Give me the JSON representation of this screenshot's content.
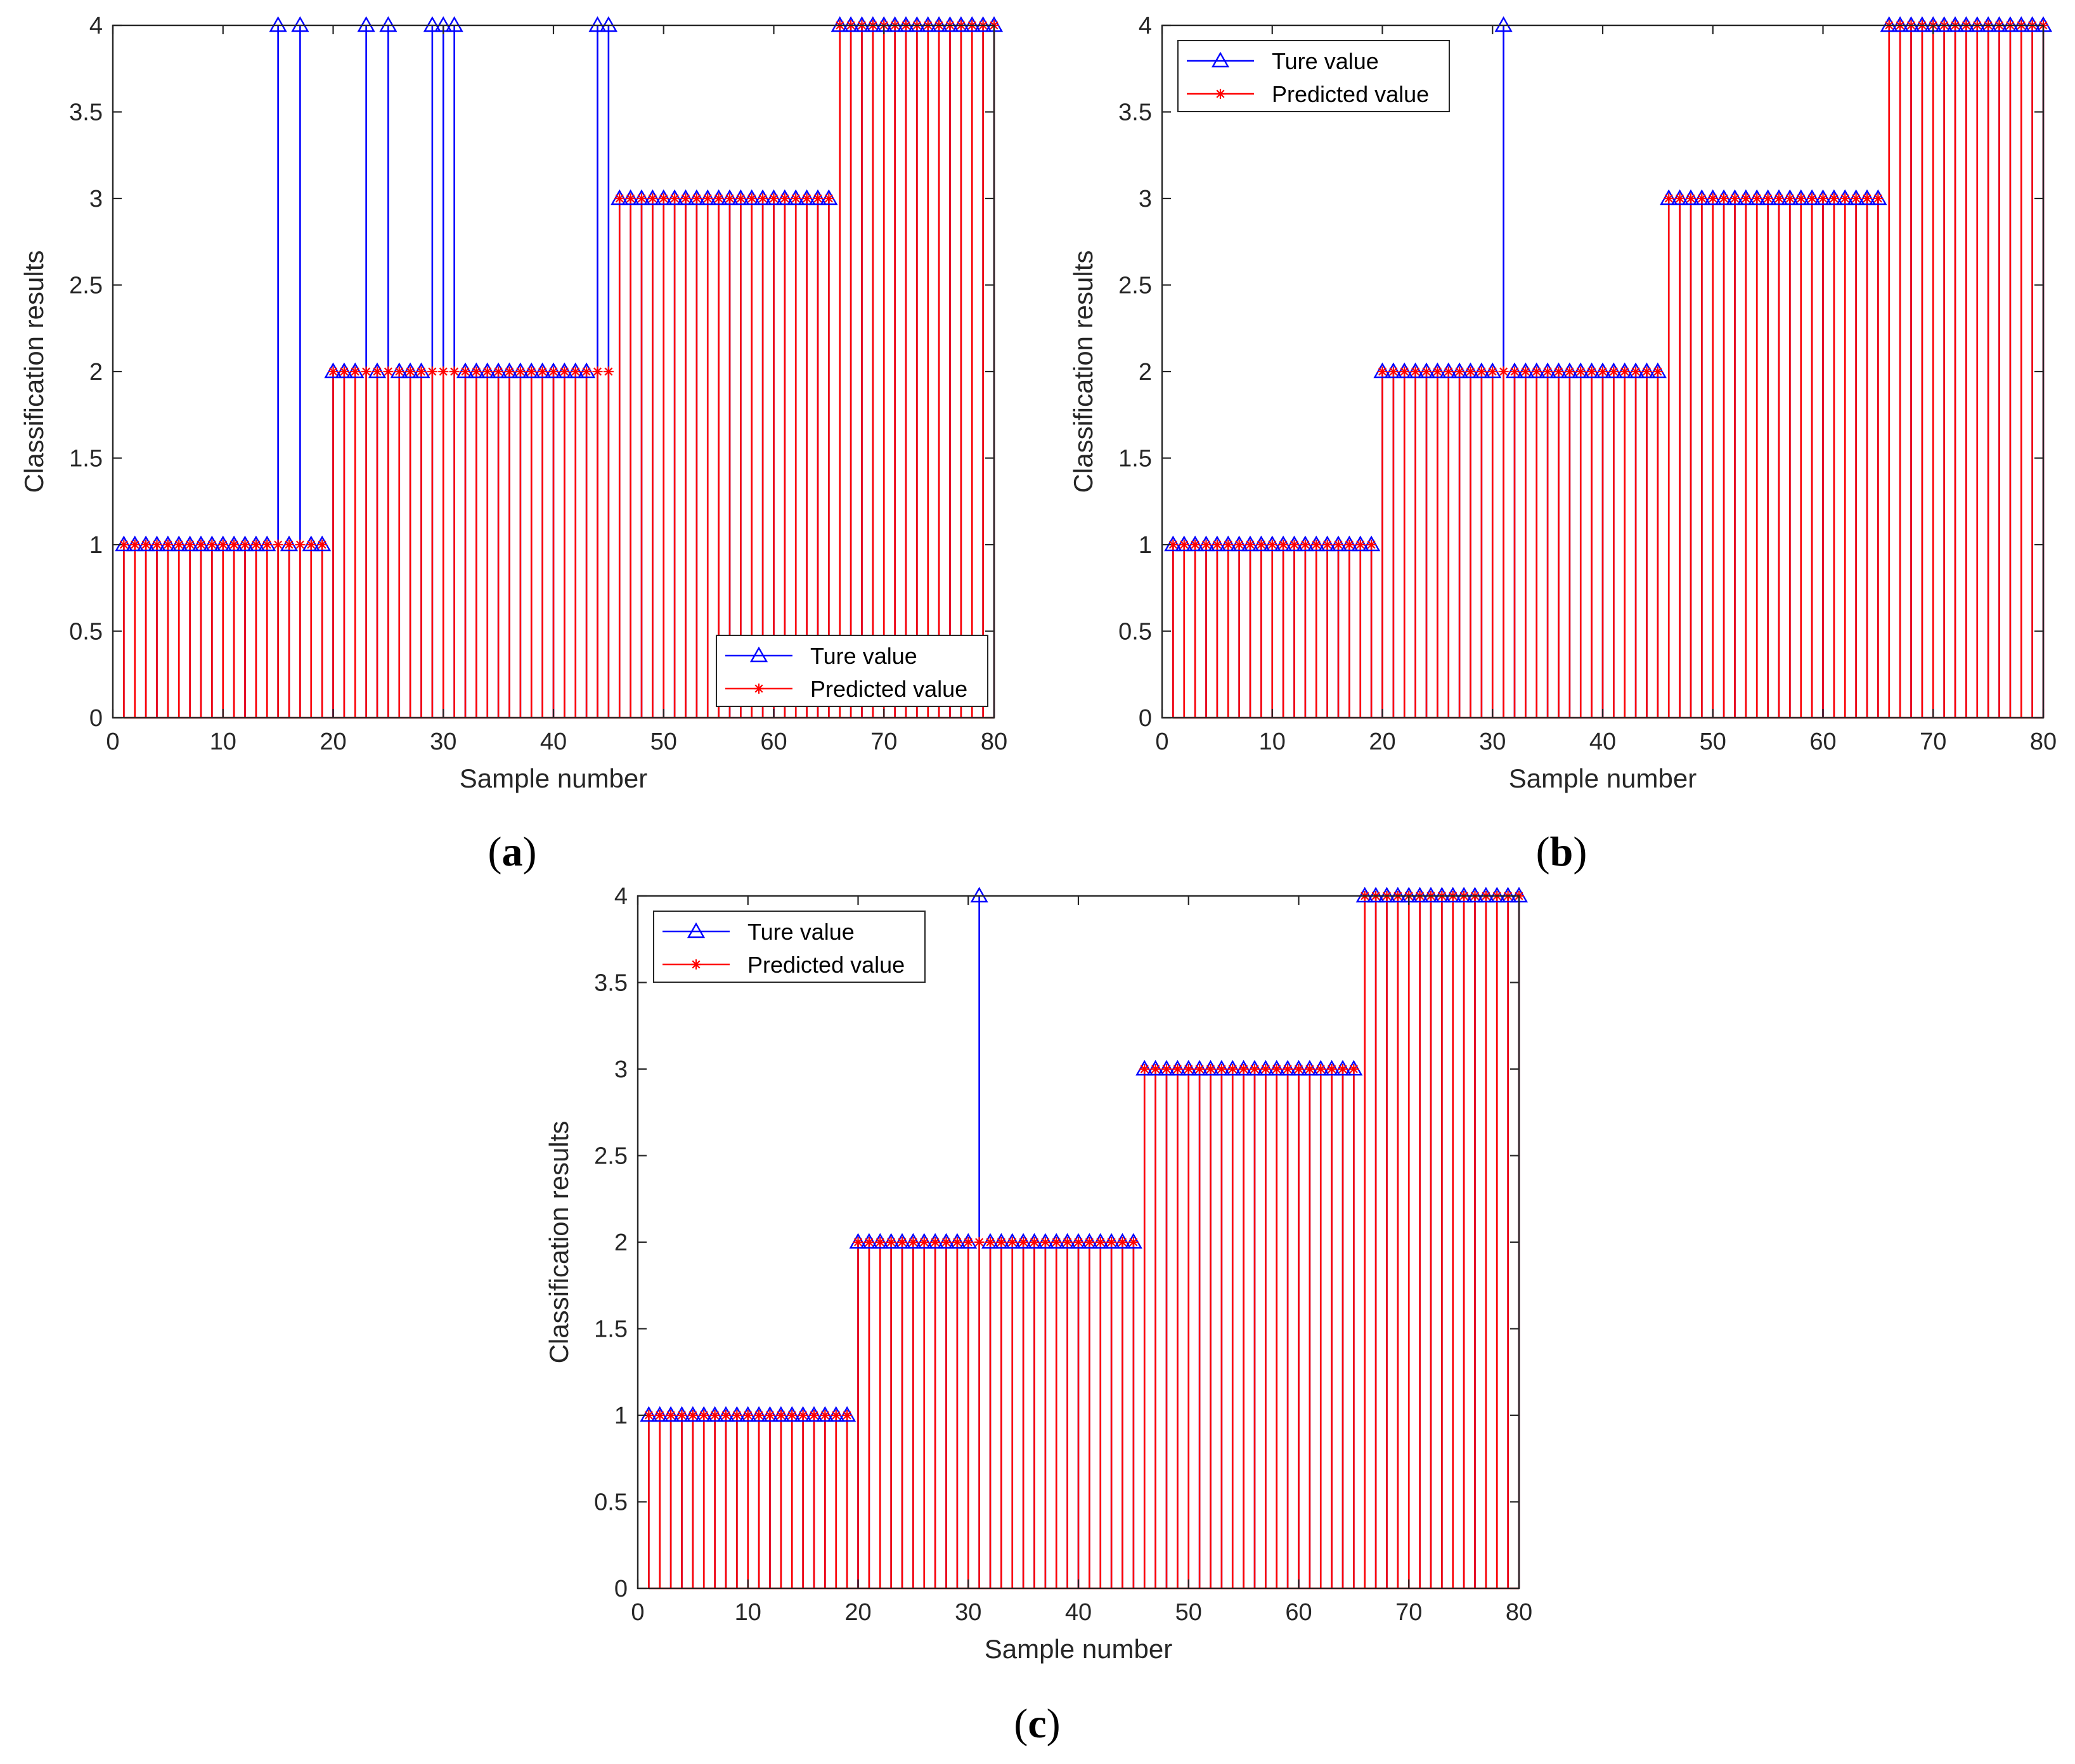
{
  "colors": {
    "true_series": "#0000ff",
    "predicted_series": "#ff0000",
    "axes": "#262626",
    "background": "#ffffff"
  },
  "chart_data": [
    {
      "type": "stem",
      "caption": {
        "open": "(",
        "letter": "a",
        "close": ")"
      },
      "xlabel": "Sample number",
      "ylabel": "Classification results",
      "xlim": [
        0,
        80
      ],
      "ylim": [
        0,
        4
      ],
      "xticks": [
        0,
        10,
        20,
        30,
        40,
        50,
        60,
        70,
        80
      ],
      "xtick_labels": [
        "0",
        "10",
        "20",
        "30",
        "40",
        "50",
        "60",
        "70",
        "80"
      ],
      "yticks": [
        0,
        0.5,
        1,
        1.5,
        2,
        2.5,
        3,
        3.5,
        4
      ],
      "ytick_labels": [
        "0",
        "0.5",
        "1",
        "1.5",
        "2",
        "2.5",
        "3",
        "3.5",
        "4"
      ],
      "legend": {
        "position": "bottom-right",
        "entries": [
          "Ture value",
          "Predicted value"
        ]
      },
      "x": [
        1,
        2,
        3,
        4,
        5,
        6,
        7,
        8,
        9,
        10,
        11,
        12,
        13,
        14,
        15,
        16,
        17,
        18,
        19,
        20,
        21,
        22,
        23,
        24,
        25,
        26,
        27,
        28,
        29,
        30,
        31,
        32,
        33,
        34,
        35,
        36,
        37,
        38,
        39,
        40,
        41,
        42,
        43,
        44,
        45,
        46,
        47,
        48,
        49,
        50,
        51,
        52,
        53,
        54,
        55,
        56,
        57,
        58,
        59,
        60,
        61,
        62,
        63,
        64,
        65,
        66,
        67,
        68,
        69,
        70,
        71,
        72,
        73,
        74,
        75,
        76,
        77,
        78,
        79,
        80
      ],
      "series": [
        {
          "name": "Ture value",
          "marker": "triangle",
          "values": [
            1,
            1,
            1,
            1,
            1,
            1,
            1,
            1,
            1,
            1,
            1,
            1,
            1,
            1,
            4,
            1,
            4,
            1,
            1,
            2,
            2,
            2,
            4,
            2,
            4,
            2,
            2,
            2,
            4,
            4,
            4,
            2,
            2,
            2,
            2,
            2,
            2,
            2,
            2,
            2,
            2,
            2,
            2,
            4,
            4,
            3,
            3,
            3,
            3,
            3,
            3,
            3,
            3,
            3,
            3,
            3,
            3,
            3,
            3,
            3,
            3,
            3,
            3,
            3,
            3,
            4,
            4,
            4,
            4,
            4,
            4,
            4,
            4,
            4,
            4,
            4,
            4,
            4,
            4,
            4
          ]
        },
        {
          "name": "Predicted value",
          "marker": "asterisk",
          "values": [
            1,
            1,
            1,
            1,
            1,
            1,
            1,
            1,
            1,
            1,
            1,
            1,
            1,
            1,
            1,
            1,
            1,
            1,
            1,
            2,
            2,
            2,
            2,
            2,
            2,
            2,
            2,
            2,
            2,
            2,
            2,
            2,
            2,
            2,
            2,
            2,
            2,
            2,
            2,
            2,
            2,
            2,
            2,
            2,
            2,
            3,
            3,
            3,
            3,
            3,
            3,
            3,
            3,
            3,
            3,
            3,
            3,
            3,
            3,
            3,
            3,
            3,
            3,
            3,
            3,
            4,
            4,
            4,
            4,
            4,
            4,
            4,
            4,
            4,
            4,
            4,
            4,
            4,
            4,
            4
          ]
        }
      ]
    },
    {
      "type": "stem",
      "caption": {
        "open": "(",
        "letter": "b",
        "close": ")"
      },
      "xlabel": "Sample number",
      "ylabel": "Classification results",
      "xlim": [
        0,
        80
      ],
      "ylim": [
        0,
        4
      ],
      "xticks": [
        0,
        10,
        20,
        30,
        40,
        50,
        60,
        70,
        80
      ],
      "xtick_labels": [
        "0",
        "10",
        "20",
        "30",
        "40",
        "50",
        "60",
        "70",
        "80"
      ],
      "yticks": [
        0,
        0.5,
        1,
        1.5,
        2,
        2.5,
        3,
        3.5,
        4
      ],
      "ytick_labels": [
        "0",
        "0.5",
        "1",
        "1.5",
        "2",
        "2.5",
        "3",
        "3.5",
        "4"
      ],
      "legend": {
        "position": "top-left",
        "entries": [
          "Ture value",
          "Predicted value"
        ]
      },
      "x": [
        1,
        2,
        3,
        4,
        5,
        6,
        7,
        8,
        9,
        10,
        11,
        12,
        13,
        14,
        15,
        16,
        17,
        18,
        19,
        20,
        21,
        22,
        23,
        24,
        25,
        26,
        27,
        28,
        29,
        30,
        31,
        32,
        33,
        34,
        35,
        36,
        37,
        38,
        39,
        40,
        41,
        42,
        43,
        44,
        45,
        46,
        47,
        48,
        49,
        50,
        51,
        52,
        53,
        54,
        55,
        56,
        57,
        58,
        59,
        60,
        61,
        62,
        63,
        64,
        65,
        66,
        67,
        68,
        69,
        70,
        71,
        72,
        73,
        74,
        75,
        76,
        77,
        78,
        79,
        80
      ],
      "series": [
        {
          "name": "Ture value",
          "marker": "triangle",
          "values": [
            1,
            1,
            1,
            1,
            1,
            1,
            1,
            1,
            1,
            1,
            1,
            1,
            1,
            1,
            1,
            1,
            1,
            1,
            1,
            2,
            2,
            2,
            2,
            2,
            2,
            2,
            2,
            2,
            2,
            2,
            4,
            2,
            2,
            2,
            2,
            2,
            2,
            2,
            2,
            2,
            2,
            2,
            2,
            2,
            2,
            3,
            3,
            3,
            3,
            3,
            3,
            3,
            3,
            3,
            3,
            3,
            3,
            3,
            3,
            3,
            3,
            3,
            3,
            3,
            3,
            4,
            4,
            4,
            4,
            4,
            4,
            4,
            4,
            4,
            4,
            4,
            4,
            4,
            4,
            4
          ]
        },
        {
          "name": "Predicted value",
          "marker": "asterisk",
          "values": [
            1,
            1,
            1,
            1,
            1,
            1,
            1,
            1,
            1,
            1,
            1,
            1,
            1,
            1,
            1,
            1,
            1,
            1,
            1,
            2,
            2,
            2,
            2,
            2,
            2,
            2,
            2,
            2,
            2,
            2,
            2,
            2,
            2,
            2,
            2,
            2,
            2,
            2,
            2,
            2,
            2,
            2,
            2,
            2,
            2,
            3,
            3,
            3,
            3,
            3,
            3,
            3,
            3,
            3,
            3,
            3,
            3,
            3,
            3,
            3,
            3,
            3,
            3,
            3,
            3,
            4,
            4,
            4,
            4,
            4,
            4,
            4,
            4,
            4,
            4,
            4,
            4,
            4,
            4,
            4
          ]
        }
      ]
    },
    {
      "type": "stem",
      "caption": {
        "open": "(",
        "letter": "c",
        "close": ")"
      },
      "xlabel": "Sample number",
      "ylabel": "Classification results",
      "xlim": [
        0,
        80
      ],
      "ylim": [
        0,
        4
      ],
      "xticks": [
        0,
        10,
        20,
        30,
        40,
        50,
        60,
        70,
        80
      ],
      "xtick_labels": [
        "0",
        "10",
        "20",
        "30",
        "40",
        "50",
        "60",
        "70",
        "80"
      ],
      "yticks": [
        0,
        0.5,
        1,
        1.5,
        2,
        2.5,
        3,
        3.5,
        4
      ],
      "ytick_labels": [
        "0",
        "0.5",
        "1",
        "1.5",
        "2",
        "2.5",
        "3",
        "3.5",
        "4"
      ],
      "legend": {
        "position": "top-left",
        "entries": [
          "Ture value",
          "Predicted value"
        ]
      },
      "x": [
        1,
        2,
        3,
        4,
        5,
        6,
        7,
        8,
        9,
        10,
        11,
        12,
        13,
        14,
        15,
        16,
        17,
        18,
        19,
        20,
        21,
        22,
        23,
        24,
        25,
        26,
        27,
        28,
        29,
        30,
        31,
        32,
        33,
        34,
        35,
        36,
        37,
        38,
        39,
        40,
        41,
        42,
        43,
        44,
        45,
        46,
        47,
        48,
        49,
        50,
        51,
        52,
        53,
        54,
        55,
        56,
        57,
        58,
        59,
        60,
        61,
        62,
        63,
        64,
        65,
        66,
        67,
        68,
        69,
        70,
        71,
        72,
        73,
        74,
        75,
        76,
        77,
        78,
        79,
        80
      ],
      "series": [
        {
          "name": "Ture value",
          "marker": "triangle",
          "values": [
            1,
            1,
            1,
            1,
            1,
            1,
            1,
            1,
            1,
            1,
            1,
            1,
            1,
            1,
            1,
            1,
            1,
            1,
            1,
            2,
            2,
            2,
            2,
            2,
            2,
            2,
            2,
            2,
            2,
            2,
            4,
            2,
            2,
            2,
            2,
            2,
            2,
            2,
            2,
            2,
            2,
            2,
            2,
            2,
            2,
            3,
            3,
            3,
            3,
            3,
            3,
            3,
            3,
            3,
            3,
            3,
            3,
            3,
            3,
            3,
            3,
            3,
            3,
            3,
            3,
            4,
            4,
            4,
            4,
            4,
            4,
            4,
            4,
            4,
            4,
            4,
            4,
            4,
            4,
            4
          ]
        },
        {
          "name": "Predicted value",
          "marker": "asterisk",
          "values": [
            1,
            1,
            1,
            1,
            1,
            1,
            1,
            1,
            1,
            1,
            1,
            1,
            1,
            1,
            1,
            1,
            1,
            1,
            1,
            2,
            2,
            2,
            2,
            2,
            2,
            2,
            2,
            2,
            2,
            2,
            2,
            2,
            2,
            2,
            2,
            2,
            2,
            2,
            2,
            2,
            2,
            2,
            2,
            2,
            2,
            3,
            3,
            3,
            3,
            3,
            3,
            3,
            3,
            3,
            3,
            3,
            3,
            3,
            3,
            3,
            3,
            3,
            3,
            3,
            3,
            4,
            4,
            4,
            4,
            4,
            4,
            4,
            4,
            4,
            4,
            4,
            4,
            4,
            4,
            4
          ]
        }
      ]
    }
  ]
}
